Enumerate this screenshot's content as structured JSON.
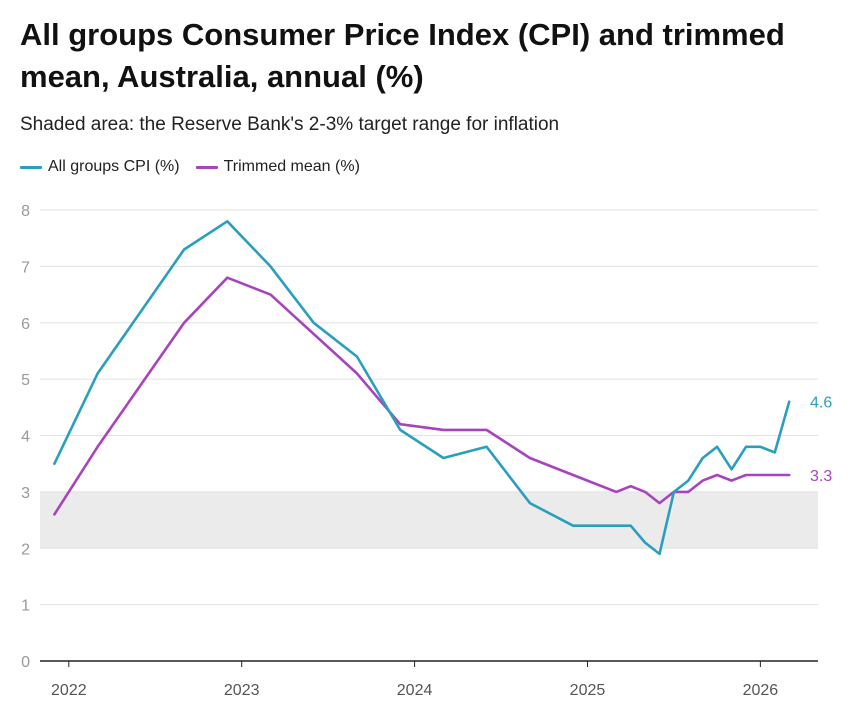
{
  "title": "All groups Consumer Price Index (CPI) and trimmed mean, Australia, annual (%)",
  "subtitle": "Shaded area: the Reserve Bank's 2-3% target range for inflation",
  "legend": [
    {
      "label": "All groups CPI (%)",
      "color": "#2a9fbd"
    },
    {
      "label": "Trimmed mean (%)",
      "color": "#a744bd"
    }
  ],
  "chart_data": {
    "type": "line",
    "title": "All groups Consumer Price Index (CPI) and trimmed mean, Australia, annual (%)",
    "subtitle": "Shaded area: the Reserve Bank's 2-3% target range for inflation",
    "xlabel": "",
    "ylabel": "",
    "ylim": [
      0,
      8
    ],
    "yticks": [
      0,
      1,
      2,
      3,
      4,
      5,
      6,
      7,
      8
    ],
    "xticks": [
      "2022",
      "2023",
      "2024",
      "2025",
      "2026"
    ],
    "xlim": [
      "2021-11-01",
      "2026-05-01"
    ],
    "grid": true,
    "legend_position": "top-left",
    "target_band": [
      2,
      3
    ],
    "series": [
      {
        "name": "All groups CPI (%)",
        "color": "#2a9fbd",
        "end_label": "4.6",
        "x": [
          "2021-12",
          "2022-03",
          "2022-09",
          "2022-12",
          "2023-03",
          "2023-06",
          "2023-09",
          "2023-12",
          "2024-03",
          "2024-06",
          "2024-09",
          "2024-12",
          "2025-03",
          "2025-04",
          "2025-05",
          "2025-06",
          "2025-07",
          "2025-08",
          "2025-09",
          "2025-10",
          "2025-11",
          "2025-12",
          "2026-01",
          "2026-02",
          "2026-03"
        ],
        "values": [
          3.5,
          5.1,
          7.3,
          7.8,
          7.0,
          6.0,
          5.4,
          4.1,
          3.6,
          3.8,
          2.8,
          2.4,
          2.4,
          2.4,
          2.1,
          1.9,
          3.0,
          3.2,
          3.6,
          3.8,
          3.4,
          3.8,
          3.8,
          3.7,
          4.6
        ]
      },
      {
        "name": "Trimmed mean (%)",
        "color": "#a744bd",
        "end_label": "3.3",
        "x": [
          "2021-12",
          "2022-03",
          "2022-09",
          "2022-12",
          "2023-03",
          "2023-09",
          "2023-12",
          "2024-03",
          "2024-06",
          "2024-09",
          "2024-12",
          "2025-03",
          "2025-04",
          "2025-05",
          "2025-06",
          "2025-07",
          "2025-08",
          "2025-09",
          "2025-10",
          "2025-11",
          "2025-12",
          "2026-01",
          "2026-02",
          "2026-03"
        ],
        "values": [
          2.6,
          3.8,
          6.0,
          6.8,
          6.5,
          5.1,
          4.2,
          4.1,
          4.1,
          3.6,
          3.3,
          3.0,
          3.1,
          3.0,
          2.8,
          3.0,
          3.0,
          3.2,
          3.3,
          3.2,
          3.3,
          3.3,
          3.3,
          3.3
        ]
      }
    ]
  }
}
